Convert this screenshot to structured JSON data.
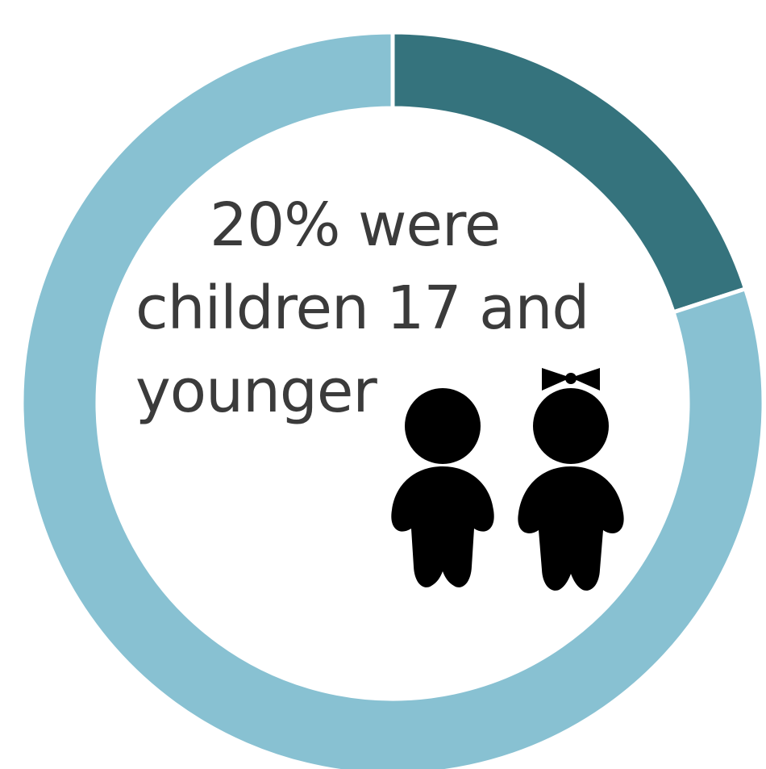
{
  "caption": {
    "line1": "20% were",
    "line2": "children 17 and",
    "line3": "younger"
  },
  "icons": [
    "boy-icon",
    "girl-icon"
  ],
  "colors": {
    "highlight": "#35737d",
    "remainder": "#88c1d2",
    "text": "#3b3b3b",
    "icon": "#000000"
  },
  "chart_data": {
    "type": "pie",
    "style": "donut",
    "slices": [
      {
        "label": "children 17 and younger",
        "value": 20,
        "color": "#35737d"
      },
      {
        "label": "",
        "value": 80,
        "color": "#88c1d2"
      }
    ],
    "unit": "%"
  }
}
